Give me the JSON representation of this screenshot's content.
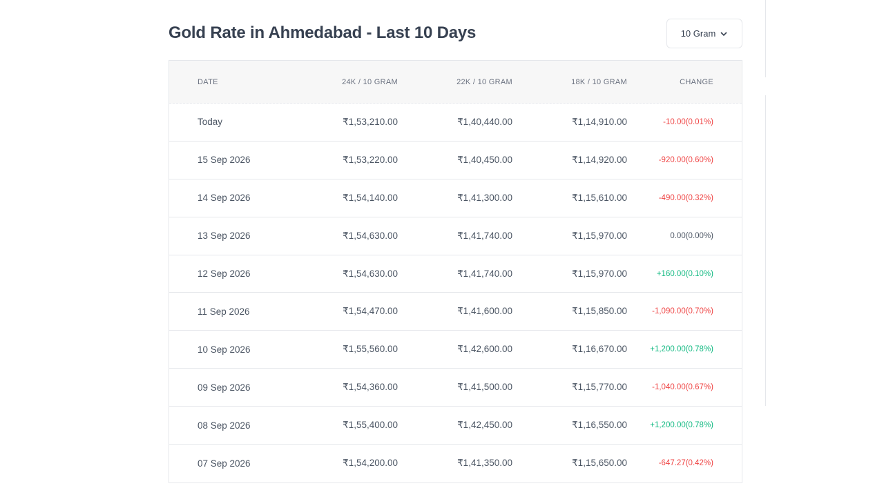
{
  "page": {
    "title": "Gold Rate in Ahmedabad - Last 10 Days",
    "unit_select": {
      "value": "10 Gram",
      "icon": "chevron-down-icon"
    }
  },
  "table": {
    "headers": {
      "date": "DATE",
      "k24": "24K / 10 GRAM",
      "k22": "22K / 10 GRAM",
      "k18": "18K / 10 GRAM",
      "change": "CHANGE"
    },
    "rows": [
      {
        "date": "Today",
        "k24": "₹1,53,210.00",
        "k22": "₹1,40,440.00",
        "k18": "₹1,14,910.00",
        "change": "-10.00(0.01%)",
        "trend": "neg"
      },
      {
        "date": "15 Sep 2026",
        "k24": "₹1,53,220.00",
        "k22": "₹1,40,450.00",
        "k18": "₹1,14,920.00",
        "change": "-920.00(0.60%)",
        "trend": "neg"
      },
      {
        "date": "14 Sep 2026",
        "k24": "₹1,54,140.00",
        "k22": "₹1,41,300.00",
        "k18": "₹1,15,610.00",
        "change": "-490.00(0.32%)",
        "trend": "neg"
      },
      {
        "date": "13 Sep 2026",
        "k24": "₹1,54,630.00",
        "k22": "₹1,41,740.00",
        "k18": "₹1,15,970.00",
        "change": "0.00(0.00%)",
        "trend": "neu"
      },
      {
        "date": "12 Sep 2026",
        "k24": "₹1,54,630.00",
        "k22": "₹1,41,740.00",
        "k18": "₹1,15,970.00",
        "change": "+160.00(0.10%)",
        "trend": "pos"
      },
      {
        "date": "11 Sep 2026",
        "k24": "₹1,54,470.00",
        "k22": "₹1,41,600.00",
        "k18": "₹1,15,850.00",
        "change": "-1,090.00(0.70%)",
        "trend": "neg"
      },
      {
        "date": "10 Sep 2026",
        "k24": "₹1,55,560.00",
        "k22": "₹1,42,600.00",
        "k18": "₹1,16,670.00",
        "change": "+1,200.00(0.78%)",
        "trend": "pos"
      },
      {
        "date": "09 Sep 2026",
        "k24": "₹1,54,360.00",
        "k22": "₹1,41,500.00",
        "k18": "₹1,15,770.00",
        "change": "-1,040.00(0.67%)",
        "trend": "neg"
      },
      {
        "date": "08 Sep 2026",
        "k24": "₹1,55,400.00",
        "k22": "₹1,42,450.00",
        "k18": "₹1,16,550.00",
        "change": "+1,200.00(0.78%)",
        "trend": "pos"
      },
      {
        "date": "07 Sep 2026",
        "k24": "₹1,54,200.00",
        "k22": "₹1,41,350.00",
        "k18": "₹1,15,650.00",
        "change": "-647.27(0.42%)",
        "trend": "neg"
      }
    ]
  },
  "colors": {
    "negative": "#ef4444",
    "positive": "#10b981",
    "header_bg": "#f7f7f7",
    "border": "#e5e7eb"
  }
}
